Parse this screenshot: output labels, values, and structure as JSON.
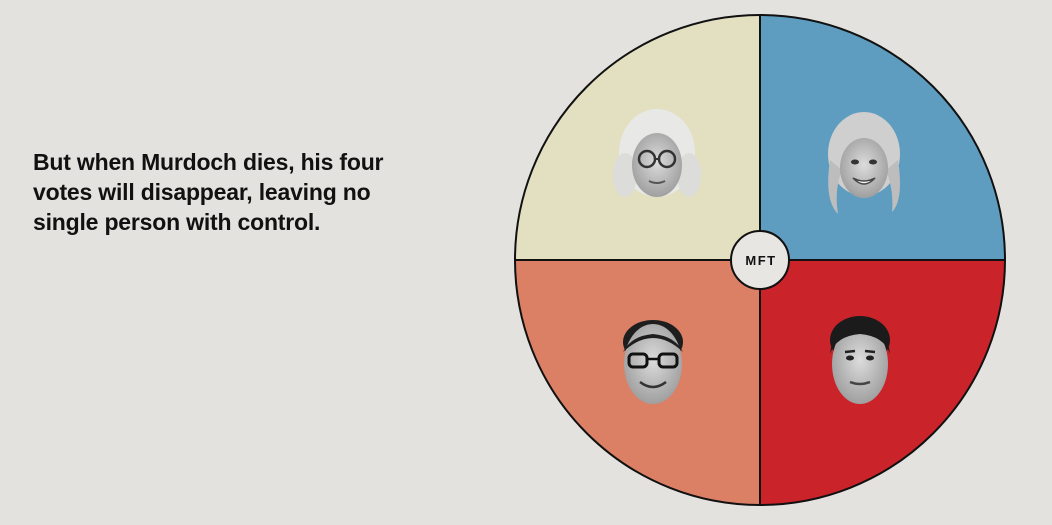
{
  "caption": "But when Murdoch dies, his four votes will disappear, leaving no single person with control.",
  "hub_label": "MFT",
  "colors": {
    "background": "#e4e2de",
    "quadrant_top_left": "#e3e0c2",
    "quadrant_top_right": "#5e9dbf",
    "quadrant_bottom_left": "#db7f65",
    "quadrant_bottom_right": "#ca232a",
    "outline": "#111111",
    "hub_fill": "#e8e6e2"
  },
  "quadrants": [
    {
      "position": "top-left",
      "portrait": "woman with white hair and round glasses"
    },
    {
      "position": "top-right",
      "portrait": "smiling blonde woman"
    },
    {
      "position": "bottom-left",
      "portrait": "man with dark glasses"
    },
    {
      "position": "bottom-right",
      "portrait": "man with dark hair"
    }
  ]
}
